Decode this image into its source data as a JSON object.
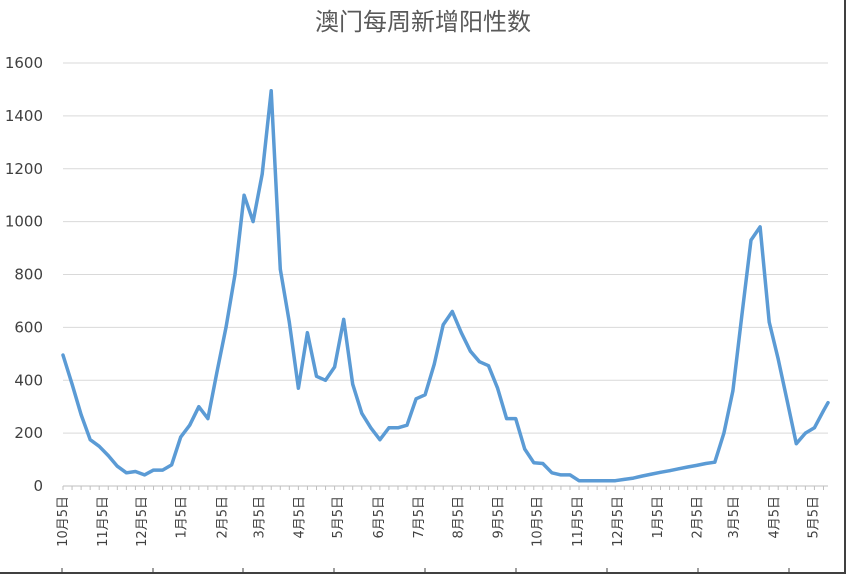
{
  "chart_data": {
    "type": "line",
    "title": "澳门每周新增阳性数",
    "xlabel": "",
    "ylabel": "",
    "ylim": [
      0,
      1600
    ],
    "yticks": [
      0,
      200,
      400,
      600,
      800,
      1000,
      1200,
      1400,
      1600
    ],
    "grid": true,
    "legend": "none",
    "line_color": "#5b9bd5",
    "xtick_labels": [
      "10月5日",
      "11月5日",
      "12月5日",
      "1月5日",
      "2月5日",
      "3月5日",
      "4月5日",
      "5月5日",
      "6月5日",
      "7月5日",
      "8月5日",
      "9月5日",
      "10月5日",
      "11月5日",
      "12月5日",
      "1月5日",
      "2月5日",
      "3月5日",
      "4月5日",
      "5月5日"
    ],
    "xtick_weeks": [
      0,
      4.4,
      8.7,
      13.1,
      17.6,
      21.7,
      26.1,
      30.4,
      34.9,
      39.3,
      43.7,
      48.1,
      52.4,
      56.9,
      61.3,
      65.7,
      70.1,
      74.1,
      78.6,
      82.9
    ],
    "series": [
      {
        "values": [
          [
            0,
            495
          ],
          [
            1,
            385
          ],
          [
            2,
            270
          ],
          [
            3,
            175
          ],
          [
            4,
            150
          ],
          [
            5,
            115
          ],
          [
            6,
            75
          ],
          [
            7,
            50
          ],
          [
            8,
            55
          ],
          [
            9,
            42
          ],
          [
            10,
            60
          ],
          [
            11,
            60
          ],
          [
            12,
            80
          ],
          [
            13,
            185
          ],
          [
            14,
            230
          ],
          [
            15,
            300
          ],
          [
            16,
            255
          ],
          [
            17,
            430
          ],
          [
            18,
            600
          ],
          [
            19,
            800
          ],
          [
            20,
            1100
          ],
          [
            21,
            1000
          ],
          [
            22,
            1180
          ],
          [
            23,
            1495
          ],
          [
            24,
            820
          ],
          [
            25,
            620
          ],
          [
            26,
            370
          ],
          [
            27,
            580
          ],
          [
            28,
            415
          ],
          [
            29,
            400
          ],
          [
            30,
            450
          ],
          [
            31,
            630
          ],
          [
            32,
            385
          ],
          [
            33,
            275
          ],
          [
            34,
            220
          ],
          [
            35,
            175
          ],
          [
            36,
            220
          ],
          [
            37,
            220
          ],
          [
            38,
            230
          ],
          [
            39,
            330
          ],
          [
            40,
            345
          ],
          [
            41,
            460
          ],
          [
            42,
            610
          ],
          [
            43,
            660
          ],
          [
            44,
            580
          ],
          [
            45,
            510
          ],
          [
            46,
            470
          ],
          [
            47,
            455
          ],
          [
            48,
            370
          ],
          [
            49,
            255
          ],
          [
            50,
            255
          ],
          [
            51,
            140
          ],
          [
            52,
            88
          ],
          [
            53,
            85
          ],
          [
            54,
            50
          ],
          [
            55,
            42
          ],
          [
            56,
            42
          ],
          [
            57,
            20
          ],
          [
            58,
            20
          ],
          [
            59,
            20
          ],
          [
            60,
            20
          ],
          [
            61,
            20
          ],
          [
            62,
            25
          ],
          [
            63,
            30
          ],
          [
            64,
            38
          ],
          [
            65,
            45
          ],
          [
            66,
            52
          ],
          [
            67,
            58
          ],
          [
            68,
            65
          ],
          [
            69,
            72
          ],
          [
            70,
            78
          ],
          [
            71,
            85
          ],
          [
            72,
            90
          ],
          [
            73,
            200
          ],
          [
            74,
            360
          ],
          [
            75,
            650
          ],
          [
            76,
            930
          ],
          [
            77,
            980
          ],
          [
            78,
            620
          ],
          [
            79,
            480
          ],
          [
            80,
            320
          ],
          [
            81,
            160
          ],
          [
            82,
            200
          ],
          [
            83,
            220
          ],
          [
            84,
            285
          ],
          [
            84.5,
            315
          ]
        ]
      }
    ]
  }
}
